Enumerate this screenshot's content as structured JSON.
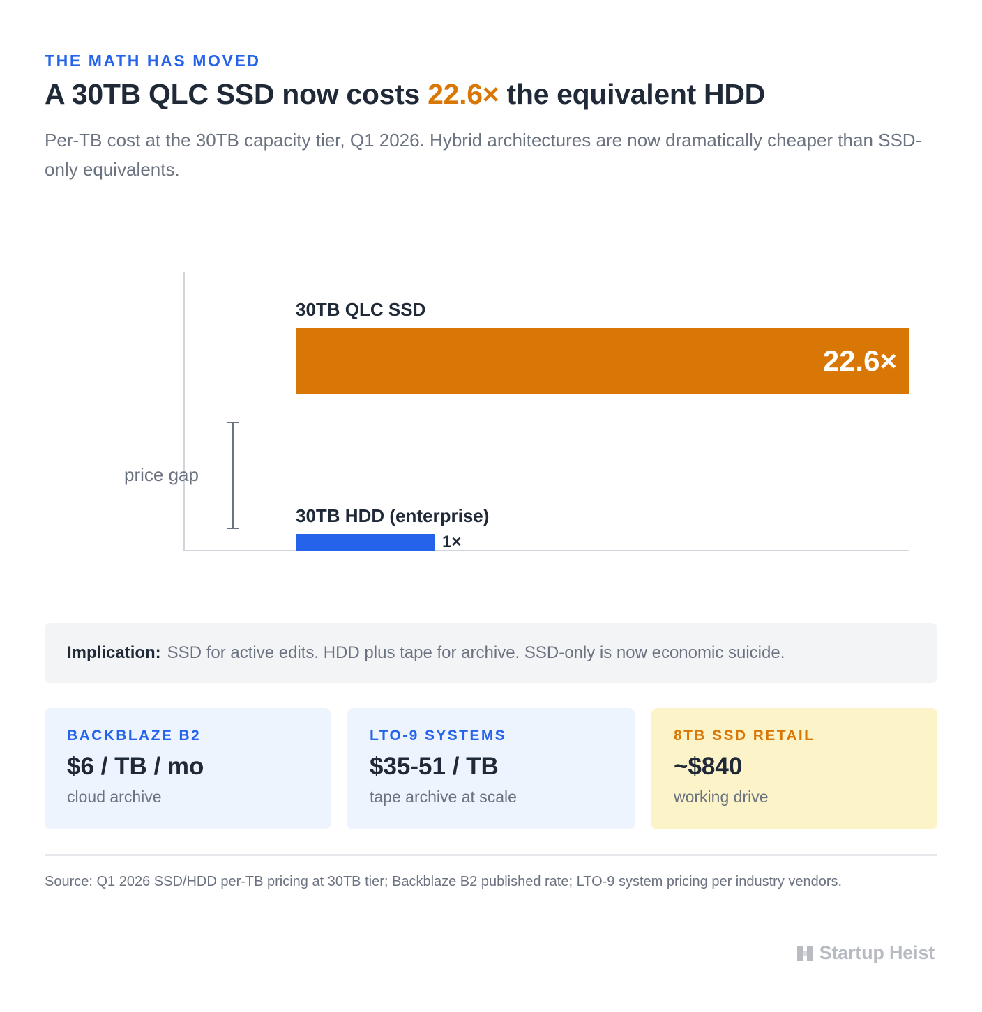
{
  "header": {
    "eyebrow": "THE MATH HAS MOVED",
    "headline_before": "A 30TB QLC SSD now costs ",
    "headline_accent": "22.6×",
    "headline_after": " the equivalent HDD",
    "subtitle": "Per-TB cost at the 30TB capacity tier, Q1 2026. Hybrid architectures are now dramatically cheaper than SSD-only equivalents."
  },
  "colors": {
    "accent_orange": "#d97706",
    "accent_blue": "#2563eb",
    "axis": "#d1d5db",
    "bracket": "#6b7280"
  },
  "chart_data": {
    "type": "bar",
    "orientation": "horizontal",
    "categories": [
      "30TB QLC SSD",
      "30TB HDD (enterprise)"
    ],
    "values": [
      22.6,
      1
    ],
    "value_labels": [
      "22.6×",
      "1×"
    ],
    "series_colors": [
      "#d97706",
      "#2563eb"
    ],
    "annotation": "price gap",
    "grid": false
  },
  "implication": {
    "label": "Implication:",
    "text": "SSD for active edits. HDD plus tape for archive. SSD-only is now economic suicide."
  },
  "cards": [
    {
      "label": "BACKBLAZE B2",
      "value": "$6 / TB / mo",
      "note": "cloud archive",
      "label_color": "#2563eb",
      "background": "#eef4fd"
    },
    {
      "label": "LTO-9 SYSTEMS",
      "value": "$35-51 / TB",
      "note": "tape archive at scale",
      "label_color": "#2563eb",
      "background": "#eef4fd"
    },
    {
      "label": "8TB SSD RETAIL",
      "value": "~$840",
      "note": "working drive",
      "label_color": "#d97706",
      "background": "#fdf3c8"
    }
  ],
  "footer": {
    "source": "Source: Q1 2026 SSD/HDD per-TB pricing at 30TB tier; Backblaze B2 published rate; LTO-9 system pricing per industry vendors.",
    "brand": "Startup Heist",
    "brand_icon": "h-logo-icon"
  }
}
